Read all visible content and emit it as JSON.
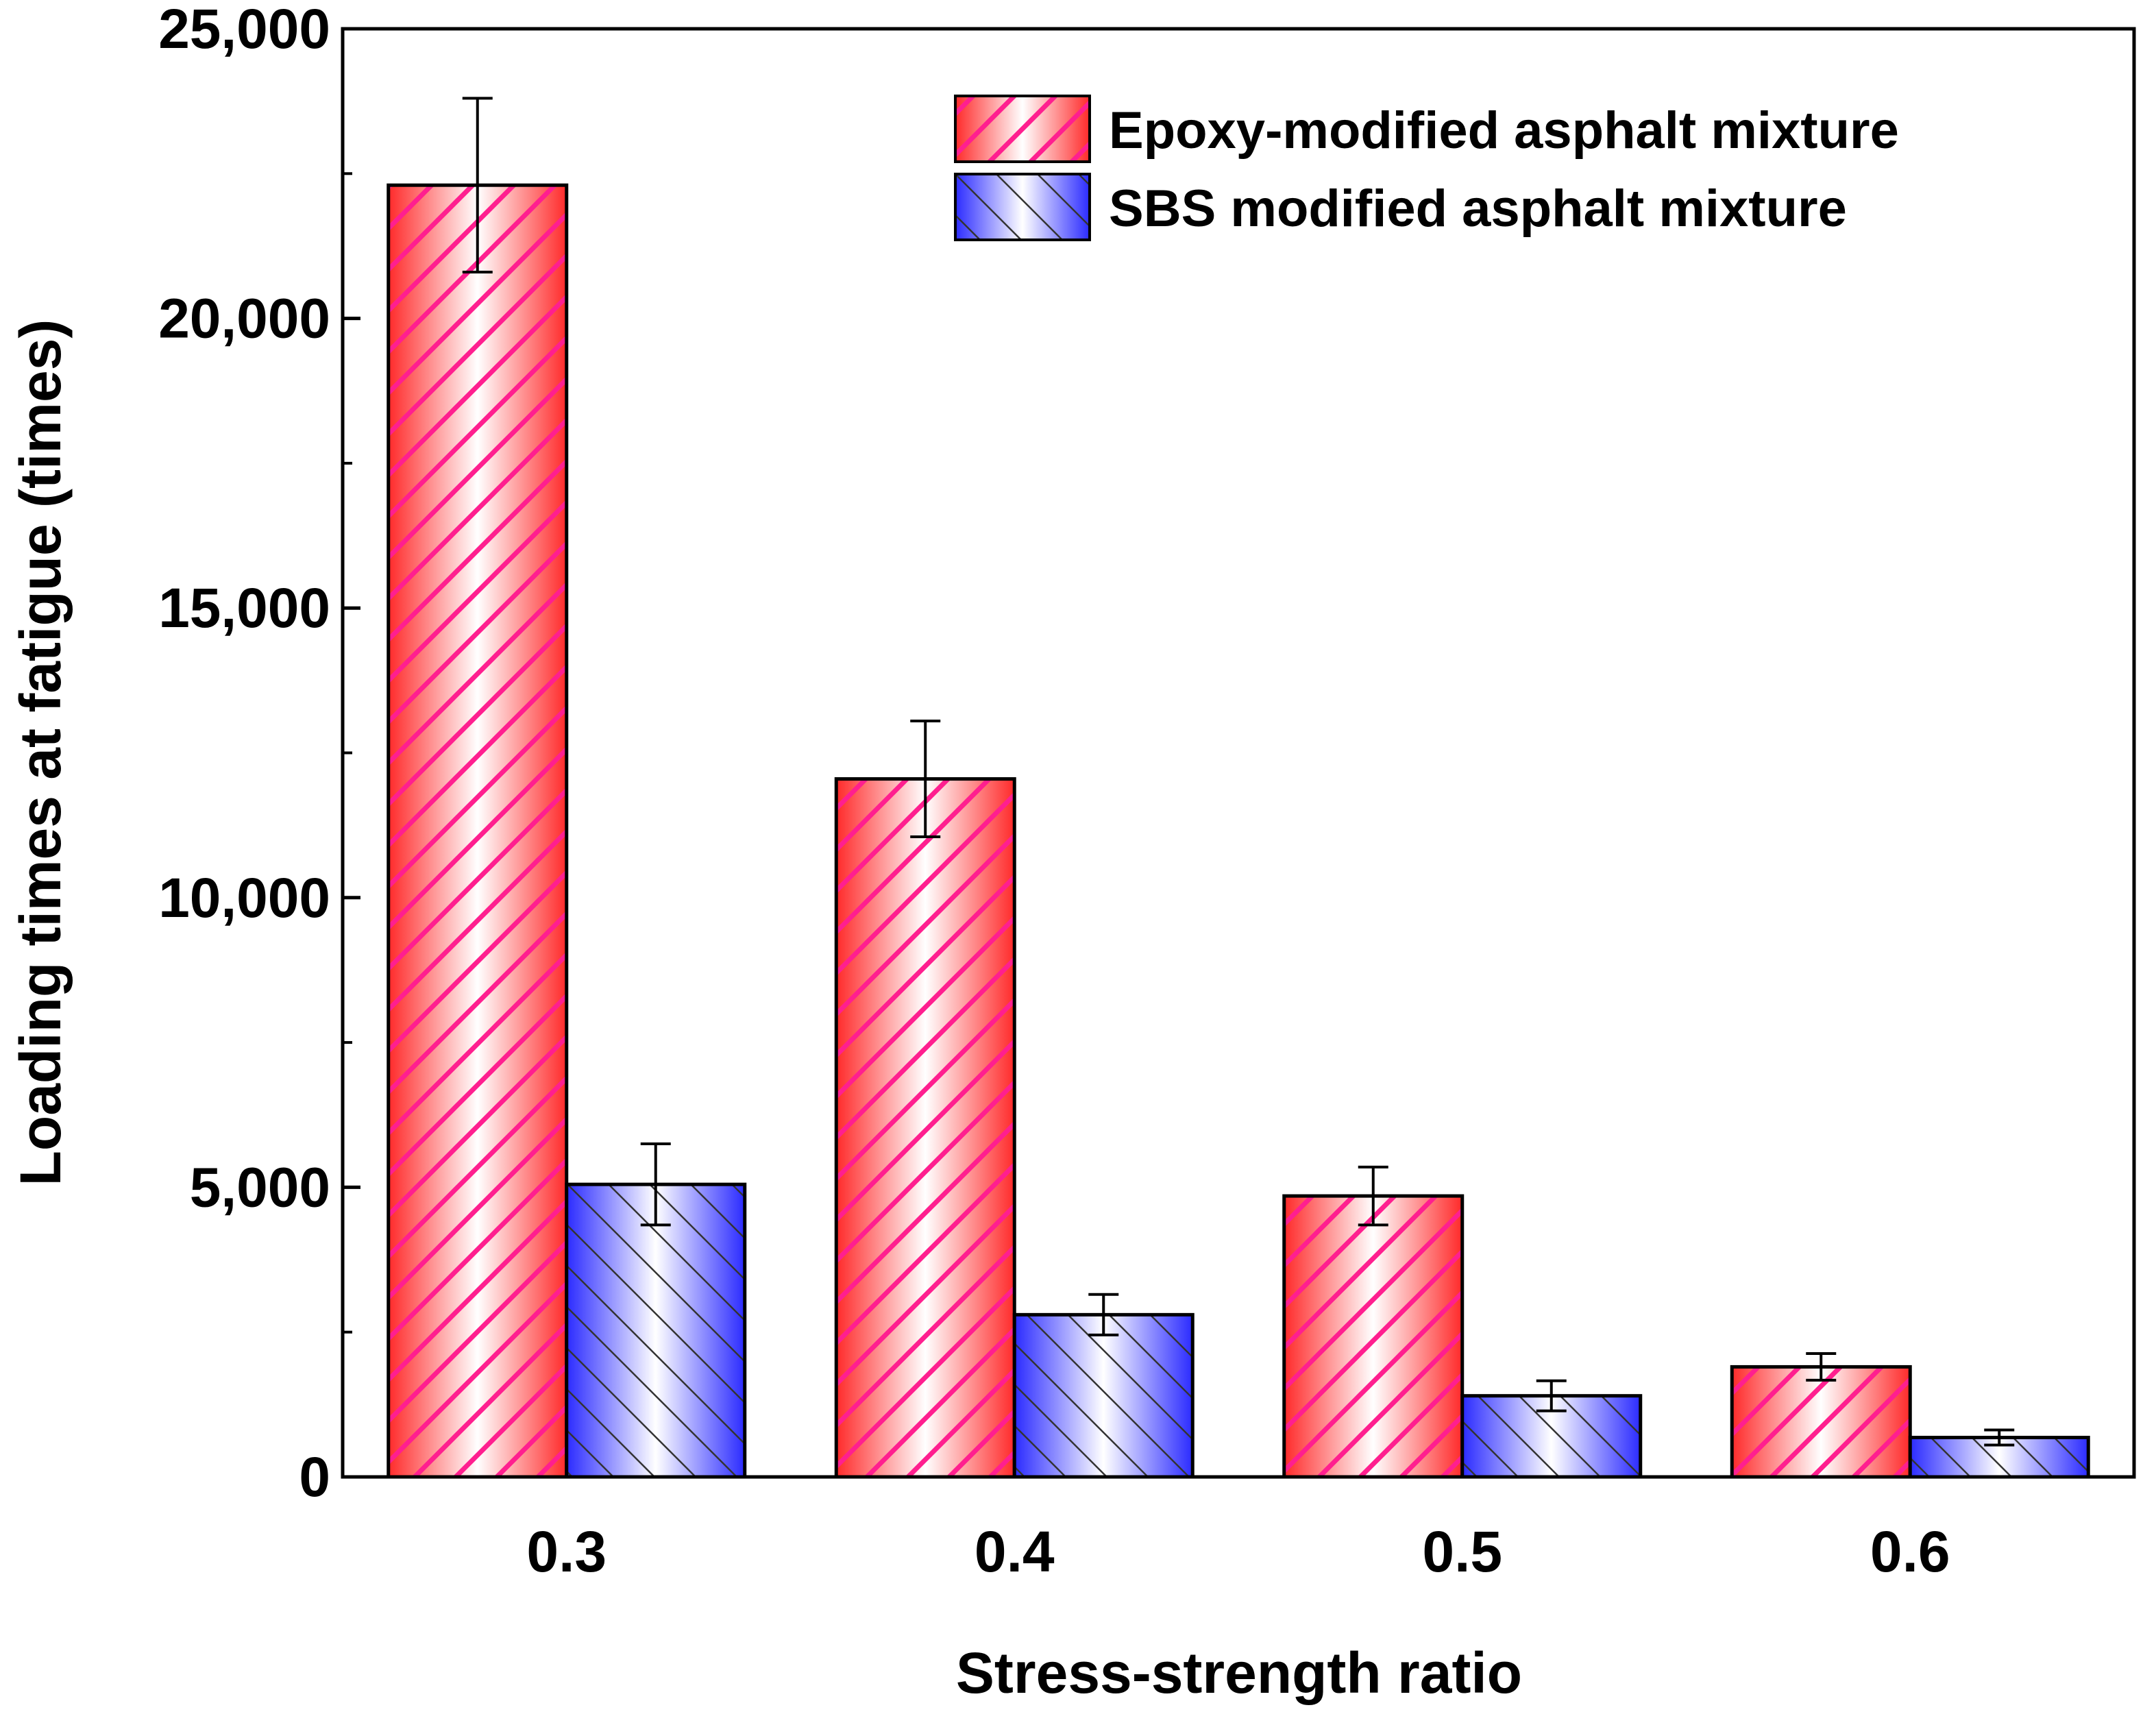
{
  "chart_data": {
    "type": "bar",
    "title": "",
    "xlabel": "Stress-strength ratio",
    "ylabel": "Loading times at fatigue (times)",
    "categories": [
      "0.3",
      "0.4",
      "0.5",
      "0.6"
    ],
    "ylim": [
      0,
      25000
    ],
    "yticks": [
      0,
      5000,
      10000,
      15000,
      20000,
      25000
    ],
    "ytick_labels": [
      "0",
      "5,000",
      "10,000",
      "15,000",
      "20,000",
      "25,000"
    ],
    "legend_position": "top-right",
    "series": [
      {
        "name": "Epoxy-modified asphalt mixture",
        "color": "#ff2a2a",
        "hatch_color": "#ff1f8f",
        "values": [
          22300,
          12050,
          4850,
          1900
        ],
        "errors": [
          1500,
          1000,
          500,
          230
        ]
      },
      {
        "name": "SBS modified asphalt mixture",
        "color": "#2b2bff",
        "hatch_color": "#333333",
        "values": [
          5050,
          2800,
          1400,
          680
        ],
        "errors": [
          700,
          350,
          260,
          130
        ]
      }
    ]
  }
}
